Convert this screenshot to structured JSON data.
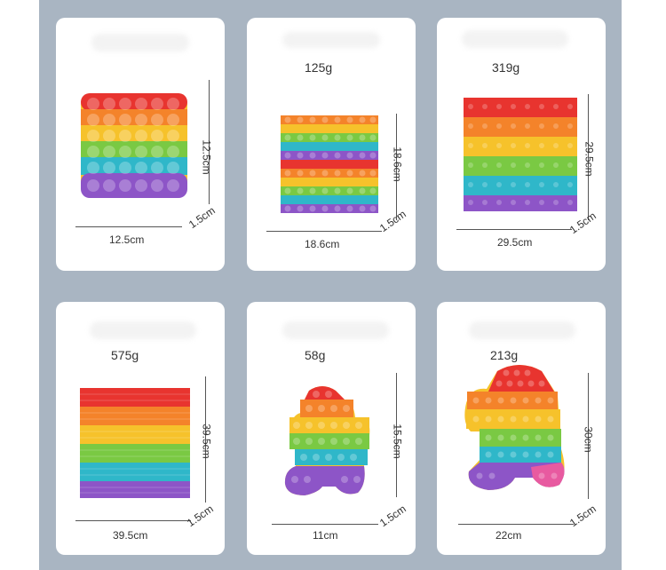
{
  "colors": {
    "background": "#a9b5c2",
    "card": "#ffffff",
    "rainbow": [
      "#e8342f",
      "#f4832a",
      "#f6c22b",
      "#7ac943",
      "#2fb7c9",
      "#8d55c7"
    ]
  },
  "products": [
    {
      "weight": "",
      "width_label": "12.5cm",
      "height_label": "12.5cm",
      "depth_label": "1.5cm"
    },
    {
      "weight": "125g",
      "width_label": "18.6cm",
      "height_label": "18.6cm",
      "depth_label": "1.5cm"
    },
    {
      "weight": "319g",
      "width_label": "29.5cm",
      "height_label": "29.5cm",
      "depth_label": "1.5cm"
    },
    {
      "weight": "575g",
      "width_label": "39.5cm",
      "height_label": "39.5cm",
      "depth_label": "1.5cm"
    },
    {
      "weight": "58g",
      "width_label": "11cm",
      "height_label": "15.5cm",
      "depth_label": "1.5cm"
    },
    {
      "weight": "213g",
      "width_label": "22cm",
      "height_label": "30cm",
      "depth_label": "1.5cm"
    }
  ]
}
